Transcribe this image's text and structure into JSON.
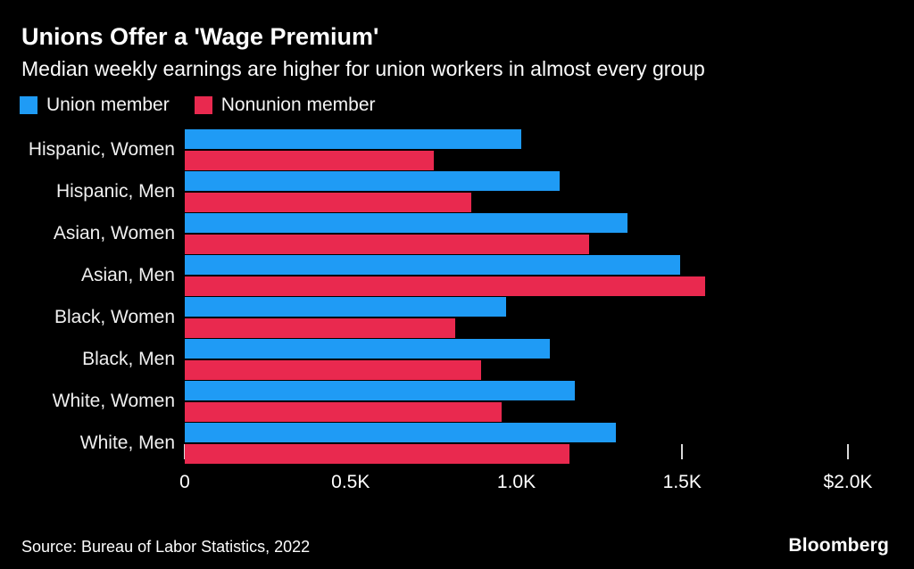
{
  "header": {
    "title": "Unions Offer a 'Wage Premium'",
    "subtitle": "Median weekly earnings are higher for union workers in almost every group"
  },
  "footer": {
    "source": "Source: Bureau of Labor Statistics, 2022",
    "brand": "Bloomberg"
  },
  "colors": {
    "background": "#000000",
    "union_blue": "#1f9bf5",
    "nonunion_red": "#e9294f",
    "text": "#ffffff",
    "tick": "#d9d9d9"
  },
  "chart_data": {
    "type": "bar",
    "orientation": "horizontal",
    "title": "Unions Offer a 'Wage Premium'",
    "subtitle": "Median weekly earnings are higher for union workers in almost every group",
    "categories": [
      "Hispanic, Women",
      "Hispanic, Men",
      "Asian, Women",
      "Asian, Men",
      "Black, Women",
      "Black, Men",
      "White, Women",
      "White, Men"
    ],
    "series": [
      {
        "name": "Union member",
        "color": "#1f9bf5",
        "values": [
          1015,
          1130,
          1335,
          1495,
          970,
          1100,
          1175,
          1300
        ]
      },
      {
        "name": "Nonunion member",
        "color": "#e9294f",
        "values": [
          750,
          865,
          1220,
          1570,
          815,
          895,
          955,
          1160
        ]
      }
    ],
    "xlim": [
      0,
      2000
    ],
    "x_ticks": [
      {
        "value": 0,
        "label": "0"
      },
      {
        "value": 500,
        "label": "0.5K"
      },
      {
        "value": 1000,
        "label": "1.0K"
      },
      {
        "value": 1500,
        "label": "1.5K"
      },
      {
        "value": 2000,
        "label": "$2.0K"
      }
    ],
    "grid": false,
    "legend_position": "top-left"
  }
}
